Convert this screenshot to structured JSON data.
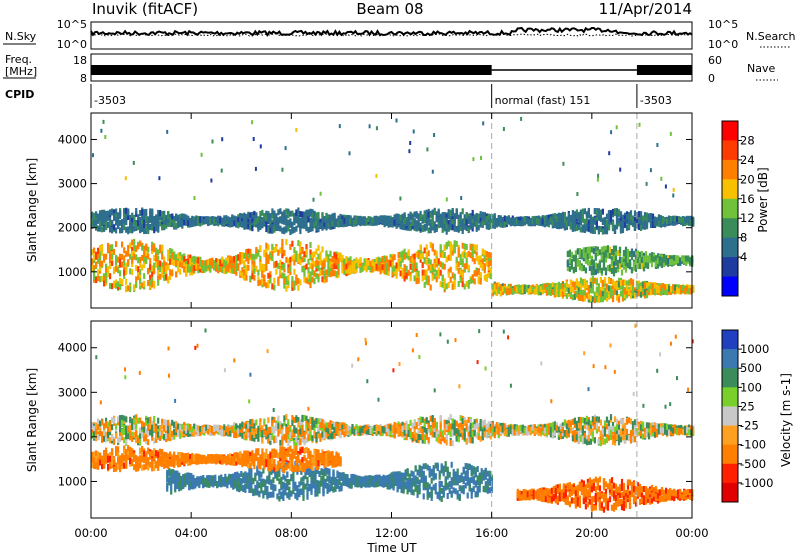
{
  "header": {
    "station": "Inuvik (fitACF)",
    "beam": "Beam 08",
    "date": "11/Apr/2014"
  },
  "housekeeping": {
    "nsky_label": "N.Sky",
    "nsearch_label": "N.Search",
    "noise_ticks": [
      "10^5",
      "10^0"
    ],
    "freq_label": "Freq.",
    "freq_unit": "[MHz]",
    "freq_ticks": [
      "18",
      "8"
    ],
    "nave_label": "Nave",
    "nave_ticks": [
      "60",
      "0"
    ],
    "cpid_label": "CPID",
    "cpid_segments": [
      {
        "start_hour": 0,
        "end_hour": 16,
        "label": "-3503"
      },
      {
        "start_hour": 16,
        "end_hour": 21.8,
        "label": "normal (fast) 151"
      },
      {
        "start_hour": 21.8,
        "end_hour": 24,
        "label": "-3503"
      }
    ]
  },
  "time_axis": {
    "label": "Time UT",
    "ticks": [
      "00:00",
      "04:00",
      "08:00",
      "12:00",
      "16:00",
      "20:00",
      "00:00"
    ],
    "range_hours": [
      0,
      24
    ]
  },
  "range_axis": {
    "label": "Slant Range [km]",
    "ticks": [
      "1000",
      "2000",
      "3000",
      "4000"
    ],
    "ylim": [
      180,
      4600
    ]
  },
  "chart_data": [
    {
      "type": "heatmap",
      "parameter": "power",
      "colorbar_label": "Power [dB]",
      "colorbar_ticks": [
        "28",
        "24",
        "20",
        "16",
        "12",
        "8",
        "4"
      ],
      "colorbar_range": [
        0,
        32
      ],
      "colors": [
        "#0000ff",
        "#1e3ca0",
        "#2e6f8e",
        "#3a8c5a",
        "#6fc23a",
        "#f7c000",
        "#ff7f00",
        "#ff3c00",
        "#ff0000"
      ],
      "echo_bands": [
        {
          "t_start": 0,
          "t_end": 16,
          "range_center": 1150,
          "range_halfwidth": 550,
          "peak_power": 26
        },
        {
          "t_start": 0,
          "t_end": 24,
          "range_center": 2150,
          "range_halfwidth": 250,
          "peak_power": 12
        },
        {
          "t_start": 16,
          "t_end": 24,
          "range_center": 600,
          "range_halfwidth": 250,
          "peak_power": 24
        },
        {
          "t_start": 19,
          "t_end": 24,
          "range_center": 1250,
          "range_halfwidth": 300,
          "peak_power": 18
        }
      ]
    },
    {
      "type": "heatmap",
      "parameter": "velocity",
      "colorbar_label": "Velocity [m s-1]",
      "colorbar_ticks": [
        "1000",
        "500",
        "100",
        "25",
        "-25",
        "-100",
        "-500",
        "-1000"
      ],
      "colorbar_range": [
        -1000,
        1000
      ],
      "colors": [
        "#2040c0",
        "#3a7ab0",
        "#3a8c5a",
        "#7ad02a",
        "#c8c8c8",
        "#ffa020",
        "#ff7f00",
        "#ff2000",
        "#e00000"
      ],
      "echo_bands": [
        {
          "t_start": 0,
          "t_end": 24,
          "range_center": 2150,
          "range_halfwidth": 300,
          "velocity": 0
        },
        {
          "t_start": 3,
          "t_end": 16,
          "range_center": 1000,
          "range_halfwidth": 400,
          "velocity": 300
        },
        {
          "t_start": 0,
          "t_end": 10,
          "range_center": 1500,
          "range_halfwidth": 250,
          "velocity": -150
        },
        {
          "t_start": 17,
          "t_end": 24,
          "range_center": 700,
          "range_halfwidth": 350,
          "velocity": -200
        }
      ]
    }
  ]
}
